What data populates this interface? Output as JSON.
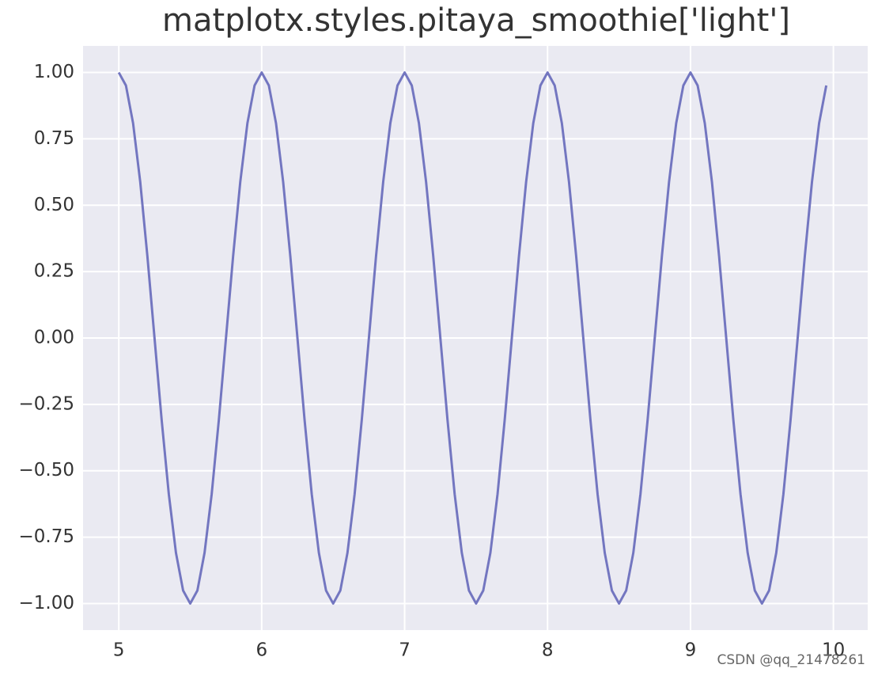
{
  "chart_data": {
    "type": "line",
    "title": "matplotx.styles.pitaya_smoothie['light']",
    "watermark": "CSDN @qq_21478261",
    "x": [
      5,
      5.05,
      5.1,
      5.15,
      5.2,
      5.25,
      5.3,
      5.35,
      5.4,
      5.45,
      5.5,
      5.55,
      5.6,
      5.65,
      5.7,
      5.75,
      5.8,
      5.85,
      5.9,
      5.95,
      6,
      6.05,
      6.1,
      6.15,
      6.2,
      6.25,
      6.3,
      6.35,
      6.4,
      6.45,
      6.5,
      6.55,
      6.6,
      6.65,
      6.7,
      6.75,
      6.8,
      6.85,
      6.9,
      6.95,
      7,
      7.05,
      7.1,
      7.15,
      7.2,
      7.25,
      7.3,
      7.35,
      7.4,
      7.45,
      7.5,
      7.55,
      7.6,
      7.65,
      7.7,
      7.75,
      7.8,
      7.85,
      7.9,
      7.95,
      8,
      8.05,
      8.1,
      8.15,
      8.2,
      8.25,
      8.3,
      8.35,
      8.4,
      8.45,
      8.5,
      8.55,
      8.6,
      8.65,
      8.7,
      8.75,
      8.8,
      8.85,
      8.9,
      8.95,
      9,
      9.05,
      9.1,
      9.15,
      9.2,
      9.25,
      9.3,
      9.35,
      9.4,
      9.45,
      9.5,
      9.55,
      9.6,
      9.65,
      9.7,
      9.75,
      9.8,
      9.85,
      9.9,
      9.95
    ],
    "values": [
      1,
      0.951,
      0.809,
      0.588,
      0.309,
      0,
      -0.309,
      -0.588,
      -0.809,
      -0.951,
      -1,
      -0.951,
      -0.809,
      -0.588,
      -0.309,
      0,
      0.309,
      0.588,
      0.809,
      0.951,
      1,
      0.951,
      0.809,
      0.588,
      0.309,
      0,
      -0.309,
      -0.588,
      -0.809,
      -0.951,
      -1,
      -0.951,
      -0.809,
      -0.588,
      -0.309,
      0,
      0.309,
      0.588,
      0.809,
      0.951,
      1,
      0.951,
      0.809,
      0.588,
      0.309,
      0,
      -0.309,
      -0.588,
      -0.809,
      -0.951,
      -1,
      -0.951,
      -0.809,
      -0.588,
      -0.309,
      0,
      0.309,
      0.588,
      0.809,
      0.951,
      1,
      0.951,
      0.809,
      0.588,
      0.309,
      0,
      -0.309,
      -0.588,
      -0.809,
      -0.951,
      -1,
      -0.951,
      -0.809,
      -0.588,
      -0.309,
      0,
      0.309,
      0.588,
      0.809,
      0.951,
      1,
      0.951,
      0.809,
      0.588,
      0.309,
      0,
      -0.309,
      -0.588,
      -0.809,
      -0.951,
      -1,
      -0.951,
      -0.809,
      -0.588,
      -0.309,
      0,
      0.309,
      0.588,
      0.809,
      0.951
    ],
    "color": "#7376c0",
    "xlim": [
      4.75,
      10.24
    ],
    "ylim": [
      -1.1,
      1.1
    ],
    "xticks": [
      5,
      6,
      7,
      8,
      9,
      10
    ],
    "yticks": [
      {
        "value": -1,
        "label": "−1.00"
      },
      {
        "value": -0.75,
        "label": "−0.75"
      },
      {
        "value": -0.5,
        "label": "−0.50"
      },
      {
        "value": -0.25,
        "label": "−0.25"
      },
      {
        "value": 0,
        "label": "0.00"
      },
      {
        "value": 0.25,
        "label": "0.25"
      },
      {
        "value": 0.5,
        "label": "0.50"
      },
      {
        "value": 0.75,
        "label": "0.75"
      },
      {
        "value": 1,
        "label": "1.00"
      }
    ],
    "grid": true
  }
}
